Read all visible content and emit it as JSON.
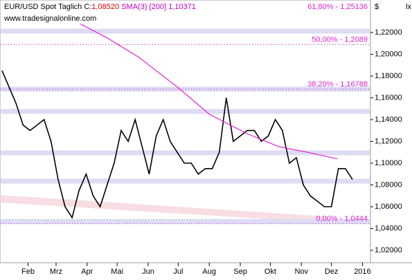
{
  "chart_data": {
    "type": "line",
    "title": "EUR/USD Spot",
    "period": "Taglich",
    "close_label": "C:",
    "close_value": "1,08520",
    "indicator": "SMA(3) [200]",
    "indicator_value": "1,10371",
    "source": "www.tradesignalonline.com",
    "currency": "$",
    "corner": "lx",
    "xlim": [
      3,
      373
    ],
    "ylim": [
      1.0086,
      1.2498
    ],
    "xticks": [
      {
        "value": 31,
        "label": "Feb"
      },
      {
        "value": 59,
        "label": "Mrz"
      },
      {
        "value": 90,
        "label": "Apr"
      },
      {
        "value": 120,
        "label": "Mai"
      },
      {
        "value": 151,
        "label": "Jun"
      },
      {
        "value": 181,
        "label": "Jul"
      },
      {
        "value": 212,
        "label": "Aug"
      },
      {
        "value": 243,
        "label": "Sep"
      },
      {
        "value": 273,
        "label": "Okt"
      },
      {
        "value": 304,
        "label": "Nov"
      },
      {
        "value": 334,
        "label": "Dez"
      },
      {
        "value": 365,
        "label": "2016"
      }
    ],
    "yticks": [
      {
        "value": 1.02,
        "label": "1,02000"
      },
      {
        "value": 1.04,
        "label": "1,04000"
      },
      {
        "value": 1.06,
        "label": "1,06000"
      },
      {
        "value": 1.08,
        "label": "1,08000"
      },
      {
        "value": 1.1,
        "label": "1,10000"
      },
      {
        "value": 1.12,
        "label": "1,12000"
      },
      {
        "value": 1.14,
        "label": "1,14000"
      },
      {
        "value": 1.16,
        "label": "1,16000"
      },
      {
        "value": 1.18,
        "label": "1,18000"
      },
      {
        "value": 1.2,
        "label": "1,20000"
      },
      {
        "value": 1.22,
        "label": "1,22000"
      }
    ],
    "zones": [
      1.2212,
      1.168,
      1.1475,
      1.1095,
      1.0835,
      1.0465
    ],
    "fib_levels": [
      {
        "value": 1.25136,
        "label": "61,80% - 1,25136"
      },
      {
        "value": 1.2089,
        "label": "50,00% - 1,2089"
      },
      {
        "value": 1.16788,
        "label": "38,20% - 1,16788"
      },
      {
        "value": 1.0444,
        "label": "0,00% - 1,0444"
      }
    ],
    "series": [
      {
        "name": "EUR/USD Spot",
        "color": "#000000",
        "x": [
          5,
          12,
          19,
          26,
          33,
          40,
          47,
          54,
          61,
          68,
          75,
          82,
          89,
          96,
          103,
          110,
          117,
          124,
          131,
          138,
          145,
          152,
          159,
          166,
          173,
          180,
          187,
          194,
          201,
          208,
          215,
          222,
          229,
          236,
          243,
          250,
          257,
          264,
          271,
          278,
          285,
          292,
          299,
          306,
          313,
          320,
          327,
          334,
          341,
          348,
          355
        ],
        "values": [
          1.185,
          1.17,
          1.155,
          1.135,
          1.13,
          1.135,
          1.14,
          1.12,
          1.085,
          1.06,
          1.05,
          1.075,
          1.09,
          1.07,
          1.06,
          1.08,
          1.1,
          1.13,
          1.12,
          1.14,
          1.115,
          1.09,
          1.125,
          1.14,
          1.12,
          1.11,
          1.1,
          1.1,
          1.09,
          1.095,
          1.095,
          1.11,
          1.16,
          1.12,
          1.125,
          1.13,
          1.13,
          1.12,
          1.125,
          1.14,
          1.13,
          1.1,
          1.105,
          1.08,
          1.07,
          1.065,
          1.06,
          1.06,
          1.095,
          1.095,
          1.085
        ]
      },
      {
        "name": "SMA(3) [200]",
        "color": "#e020d0",
        "x": [
          83,
          110,
          142,
          180,
          212,
          250,
          282,
          310,
          340
        ],
        "values": [
          1.228,
          1.215,
          1.197,
          1.17,
          1.145,
          1.127,
          1.115,
          1.11,
          1.104
        ]
      }
    ]
  }
}
